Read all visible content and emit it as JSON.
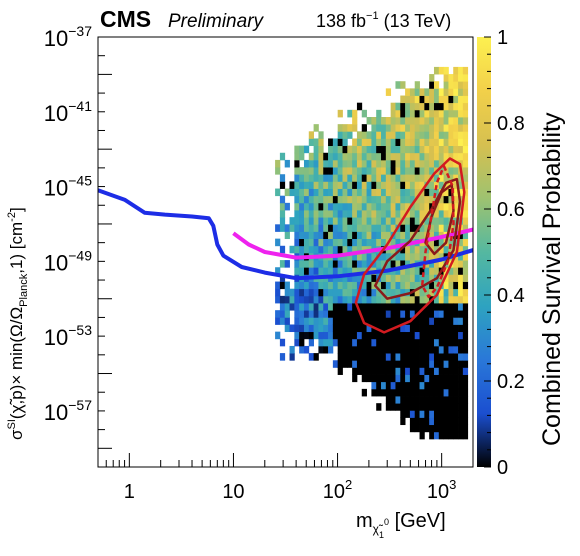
{
  "header": {
    "experiment": "CMS",
    "status": "Preliminary",
    "lumi_value": "138 fb",
    "lumi_exp": "−1",
    "energy": " (13 TeV)"
  },
  "chart_data": {
    "type": "heatmap",
    "title": "",
    "xlabel": {
      "main": "m",
      "sub": "χ̃",
      "sub2": "1",
      "sup": "0",
      "unit": " [GeV]"
    },
    "ylabel": {
      "sigma": "σ",
      "SI": "SI",
      "body1": "(χ̃,p)× min(Ω/Ω",
      "planck": "Planck",
      "body2": ",1) [cm",
      "unit_exp": "-2",
      "body3": "]"
    },
    "x_scale": "log",
    "y_scale": "log",
    "xlim": [
      0.5,
      2000
    ],
    "ylim": [
      1e-60,
      1e-37
    ],
    "x_ticks": [
      {
        "value": 1,
        "label": "1",
        "exp": ""
      },
      {
        "value": 10,
        "label": "10",
        "exp": ""
      },
      {
        "value": 100,
        "label": "10",
        "exp": "2"
      },
      {
        "value": 1000,
        "label": "10",
        "exp": "3"
      }
    ],
    "y_ticks": [
      {
        "value_exp": -37,
        "label": "10",
        "exp": "−37"
      },
      {
        "value_exp": -41,
        "label": "10",
        "exp": "−41"
      },
      {
        "value_exp": -45,
        "label": "10",
        "exp": "−45"
      },
      {
        "value_exp": -49,
        "label": "10",
        "exp": "−49"
      },
      {
        "value_exp": -53,
        "label": "10",
        "exp": "−53"
      },
      {
        "value_exp": -57,
        "label": "10",
        "exp": "−57"
      }
    ],
    "colorbar": {
      "label": "Combined Survival Probability",
      "range": [
        0,
        1
      ],
      "ticks": [
        {
          "value": 0,
          "label": "0"
        },
        {
          "value": 0.2,
          "label": "0.2"
        },
        {
          "value": 0.4,
          "label": "0.4"
        },
        {
          "value": 0.6,
          "label": "0.6"
        },
        {
          "value": 0.8,
          "label": "0.8"
        },
        {
          "value": 1,
          "label": "1"
        }
      ],
      "colors": [
        "#000000",
        "#1b4fd0",
        "#2a78d8",
        "#2ea3c0",
        "#55b8a0",
        "#9ec270",
        "#d6c050",
        "#f2d04a",
        "#fdf050"
      ]
    },
    "heatmap_region": {
      "x_log_range": [
        1.4,
        3.25
      ],
      "y_log_range": [
        -58.5,
        -38.6
      ]
    },
    "curves": [
      {
        "style": "solid",
        "color": "#1d2de6",
        "points": [
          [
            0.5,
            -45.2
          ],
          [
            0.9,
            -45.7
          ],
          [
            1.4,
            -46.4
          ],
          [
            2.2,
            -46.5
          ],
          [
            4.0,
            -46.6
          ],
          [
            5.8,
            -46.7
          ],
          [
            6.4,
            -47.1
          ],
          [
            7.0,
            -48.1
          ],
          [
            8.0,
            -48.7
          ],
          [
            12,
            -49.3
          ],
          [
            20,
            -49.6
          ],
          [
            40,
            -49.9
          ],
          [
            100,
            -49.8
          ],
          [
            300,
            -49.5
          ],
          [
            1000,
            -48.9
          ],
          [
            2000,
            -48.4
          ]
        ]
      },
      {
        "style": "solid",
        "color": "#ee22ee",
        "points": [
          [
            10,
            -47.5
          ],
          [
            14,
            -48.1
          ],
          [
            20,
            -48.5
          ],
          [
            40,
            -48.8
          ],
          [
            100,
            -48.7
          ],
          [
            300,
            -48.3
          ],
          [
            1000,
            -47.7
          ],
          [
            2000,
            -47.3
          ]
        ]
      }
    ],
    "contours": [
      {
        "style": "solid",
        "color": "#d21b20",
        "points": [
          [
            1500,
            -43.8
          ],
          [
            1650,
            -45.3
          ],
          [
            1400,
            -48.5
          ],
          [
            900,
            -50.8
          ],
          [
            500,
            -52.2
          ],
          [
            280,
            -52.8
          ],
          [
            180,
            -52.3
          ],
          [
            150,
            -51.2
          ],
          [
            180,
            -49.7
          ],
          [
            300,
            -48.1
          ],
          [
            500,
            -46.1
          ],
          [
            850,
            -44.3
          ],
          [
            1200,
            -43.5
          ],
          [
            1500,
            -43.8
          ]
        ]
      },
      {
        "style": "solid",
        "color": "#8a1a1a",
        "points": [
          [
            1400,
            -44.6
          ],
          [
            1500,
            -45.8
          ],
          [
            1300,
            -48.4
          ],
          [
            900,
            -49.9
          ],
          [
            500,
            -50.7
          ],
          [
            300,
            -51.0
          ],
          [
            230,
            -50.3
          ],
          [
            300,
            -49.0
          ],
          [
            500,
            -47.9
          ],
          [
            800,
            -46.2
          ],
          [
            1100,
            -44.8
          ],
          [
            1400,
            -44.6
          ]
        ]
      },
      {
        "style": "solid",
        "color": "#8a1a1a",
        "points": [
          [
            1250,
            -44.9
          ],
          [
            1300,
            -46.3
          ],
          [
            1100,
            -48.0
          ],
          [
            850,
            -48.6
          ],
          [
            700,
            -48.0
          ],
          [
            800,
            -46.6
          ],
          [
            1000,
            -45.3
          ],
          [
            1250,
            -44.9
          ]
        ]
      },
      {
        "style": "dashed",
        "color": "#d21b20",
        "points": [
          [
            1050,
            -43.9
          ],
          [
            1280,
            -45.0
          ],
          [
            1300,
            -47.0
          ],
          [
            1150,
            -49.0
          ],
          [
            900,
            -50.4
          ],
          [
            750,
            -50.9
          ],
          [
            650,
            -50.3
          ],
          [
            700,
            -48.5
          ],
          [
            800,
            -46.5
          ],
          [
            900,
            -44.8
          ],
          [
            1050,
            -43.9
          ]
        ]
      }
    ],
    "grid": false,
    "legend": "none"
  }
}
